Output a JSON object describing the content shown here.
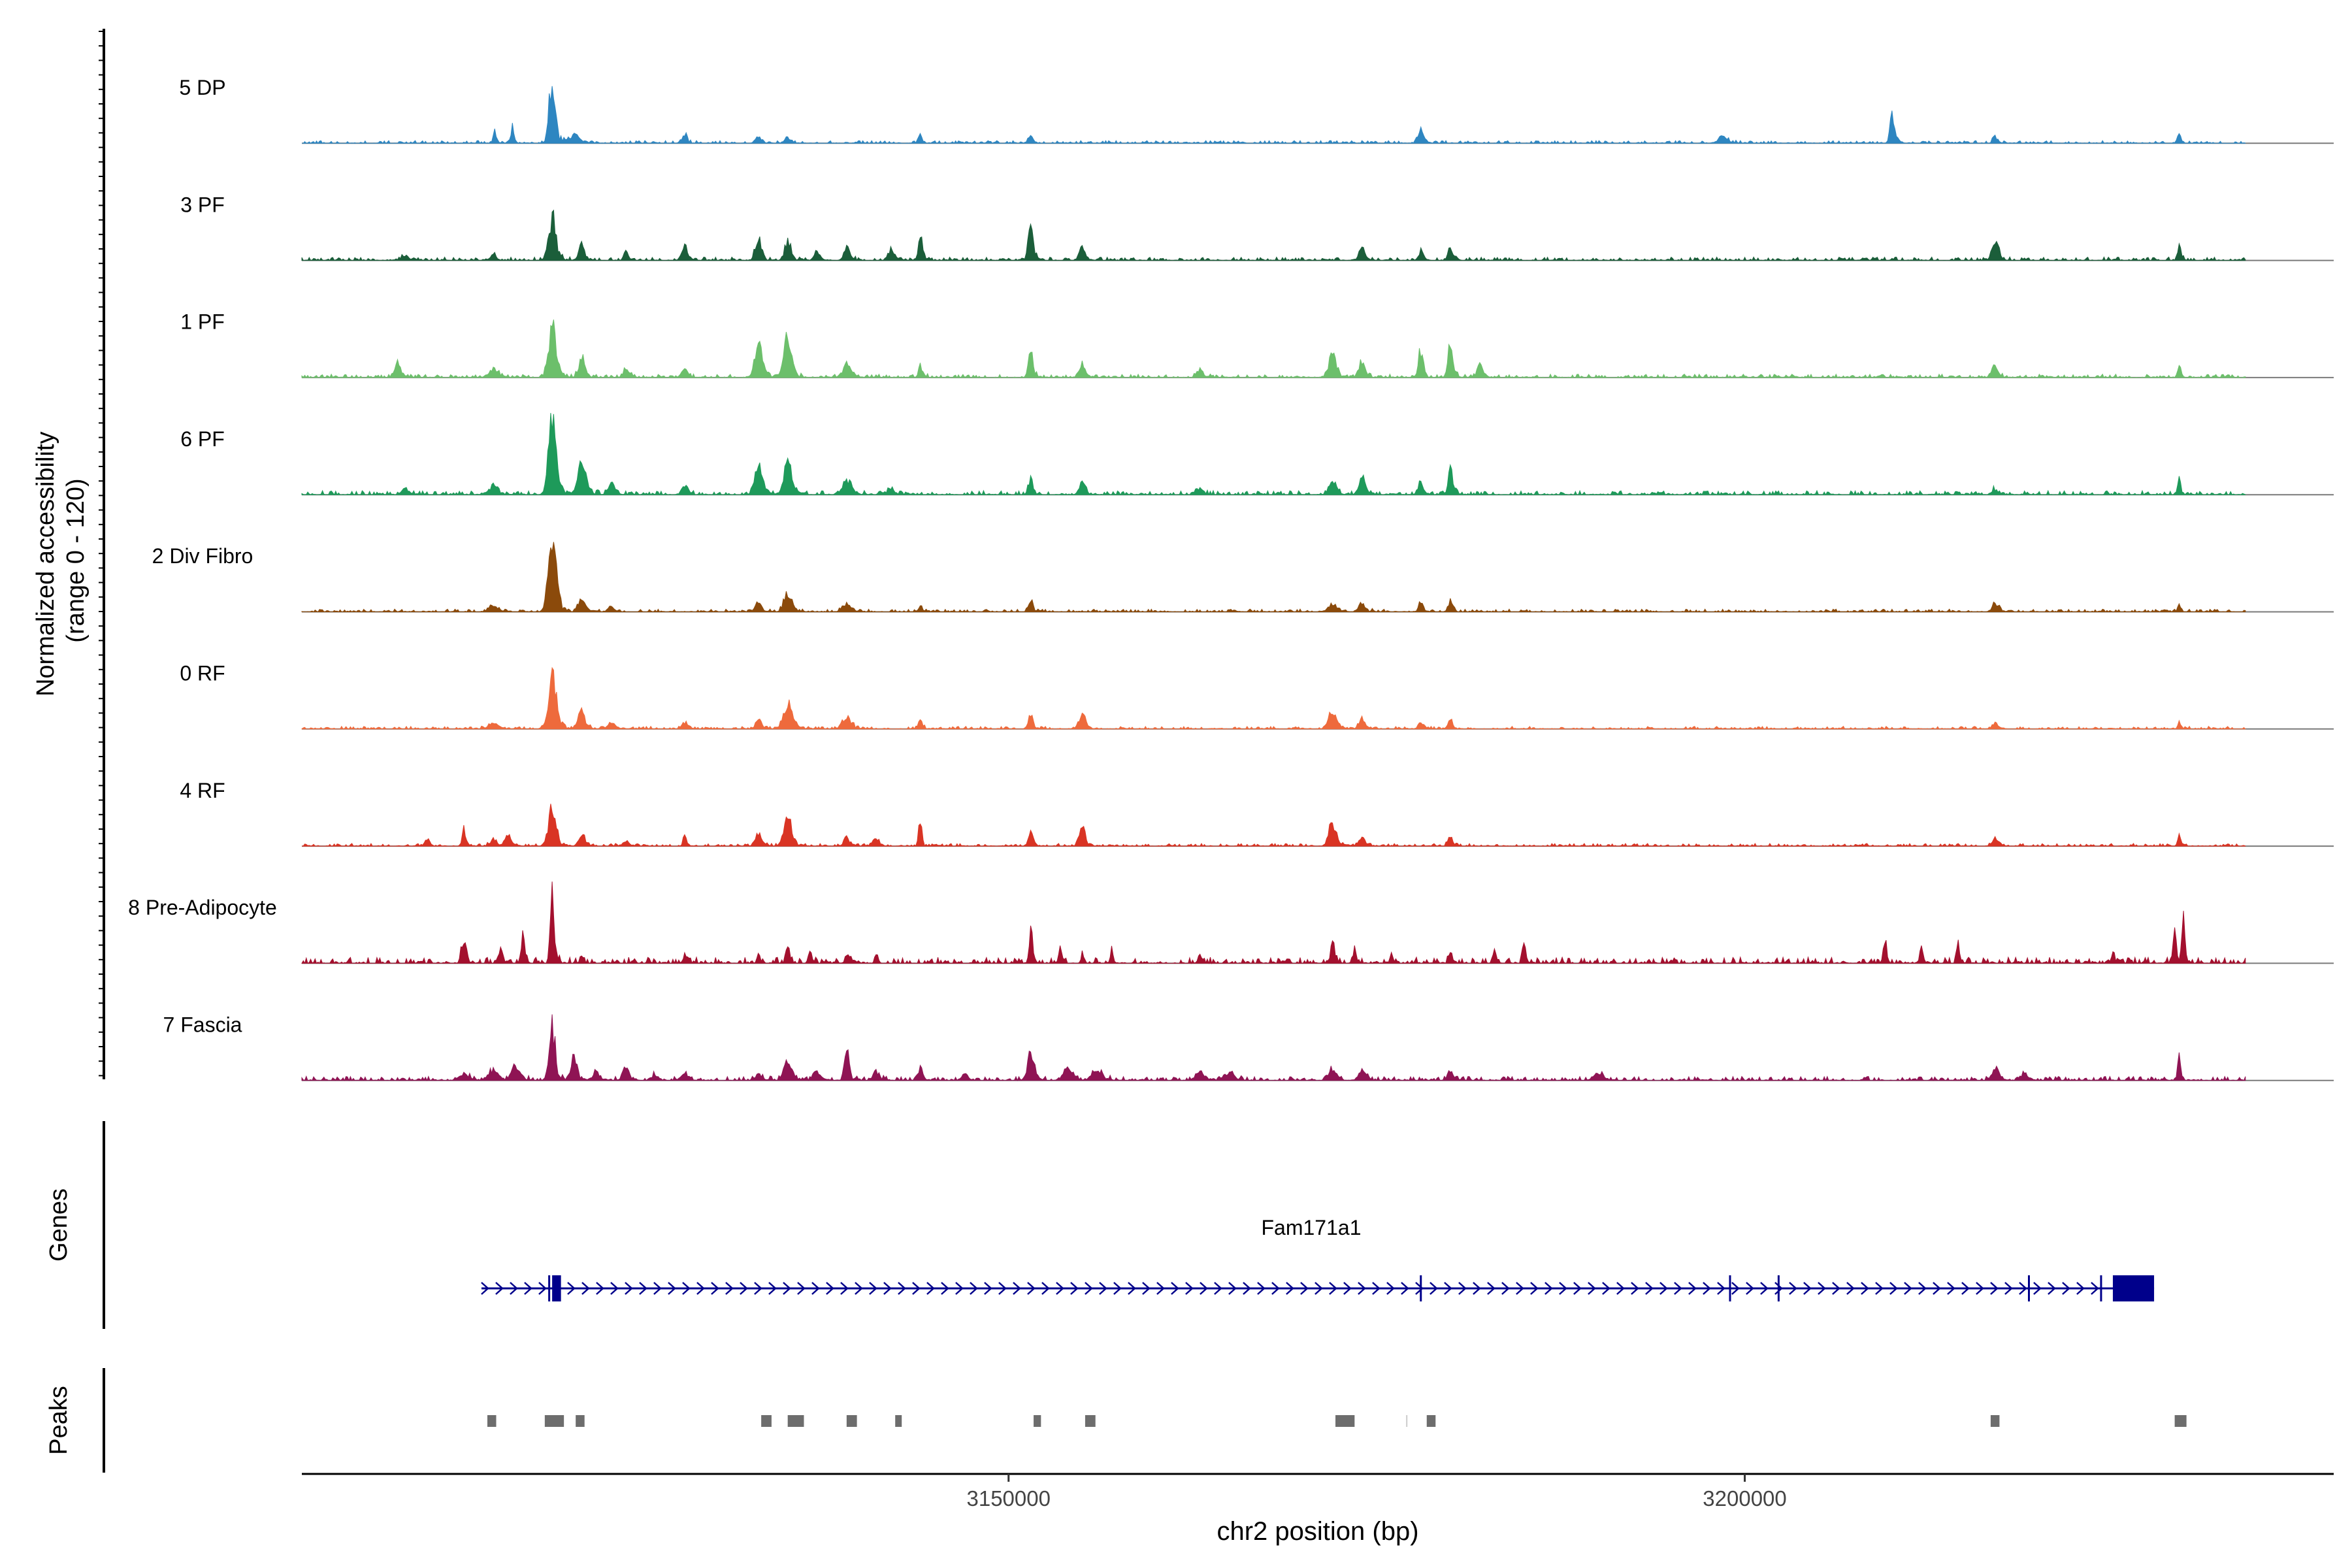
{
  "chart_data": {
    "type": "area",
    "title": "",
    "ylabel_line1": "Normalized accessibility",
    "ylabel_line2": "(range 0 - 120)",
    "xlabel": "chr2 position (bp)",
    "ylim": [
      0,
      120
    ],
    "xlim": [
      3102000,
      3240000
    ],
    "xticks": [
      3150000,
      3200000
    ],
    "xtick_labels": [
      "3150000",
      "3200000"
    ],
    "grid": false,
    "series": [
      {
        "name": "5 DP",
        "color": "#2E86C1",
        "noise": 4,
        "peaks": [
          [
            3115100,
            22,
            100
          ],
          [
            3116300,
            28,
            100
          ],
          [
            3119000,
            120,
            200
          ],
          [
            3120500,
            15,
            300
          ],
          [
            3128000,
            15,
            150
          ],
          [
            3133000,
            10,
            200
          ],
          [
            3135000,
            8,
            200
          ],
          [
            3144000,
            18,
            100
          ],
          [
            3151500,
            15,
            150
          ],
          [
            3178000,
            20,
            200
          ],
          [
            3198500,
            12,
            300
          ],
          [
            3210000,
            48,
            150
          ],
          [
            3217000,
            12,
            150
          ],
          [
            3229500,
            18,
            100
          ]
        ]
      },
      {
        "name": "3 PF",
        "color": "#1B5E3A",
        "noise": 5,
        "peaks": [
          [
            3109000,
            8,
            200
          ],
          [
            3115000,
            10,
            200
          ],
          [
            3119000,
            75,
            250
          ],
          [
            3121000,
            30,
            200
          ],
          [
            3124000,
            15,
            150
          ],
          [
            3128000,
            25,
            200
          ],
          [
            3133000,
            40,
            200
          ],
          [
            3135000,
            35,
            200
          ],
          [
            3137000,
            15,
            200
          ],
          [
            3139000,
            22,
            200
          ],
          [
            3142000,
            20,
            200
          ],
          [
            3144000,
            45,
            120
          ],
          [
            3151500,
            75,
            150
          ],
          [
            3155000,
            25,
            200
          ],
          [
            3174000,
            22,
            200
          ],
          [
            3178000,
            18,
            150
          ],
          [
            3180000,
            22,
            150
          ],
          [
            3217000,
            35,
            200
          ],
          [
            3229500,
            30,
            100
          ]
        ]
      },
      {
        "name": "1 PF",
        "color": "#6CBF6B",
        "noise": 5,
        "peaks": [
          [
            3108500,
            22,
            200
          ],
          [
            3115000,
            15,
            300
          ],
          [
            3119000,
            90,
            250
          ],
          [
            3121000,
            35,
            200
          ],
          [
            3124000,
            12,
            200
          ],
          [
            3128000,
            15,
            200
          ],
          [
            3133000,
            60,
            250
          ],
          [
            3135000,
            70,
            250
          ],
          [
            3139000,
            20,
            300
          ],
          [
            3144000,
            25,
            120
          ],
          [
            3151500,
            55,
            150
          ],
          [
            3155000,
            22,
            200
          ],
          [
            3163000,
            15,
            200
          ],
          [
            3172000,
            40,
            250
          ],
          [
            3174000,
            25,
            200
          ],
          [
            3178000,
            50,
            150
          ],
          [
            3180000,
            60,
            150
          ],
          [
            3182000,
            20,
            200
          ],
          [
            3217000,
            22,
            200
          ],
          [
            3229500,
            20,
            100
          ]
        ]
      },
      {
        "name": "6 PF",
        "color": "#1E9A5A",
        "noise": 6,
        "peaks": [
          [
            3109000,
            12,
            200
          ],
          [
            3115000,
            15,
            300
          ],
          [
            3119000,
            130,
            250
          ],
          [
            3121000,
            65,
            250
          ],
          [
            3123000,
            20,
            200
          ],
          [
            3128000,
            15,
            200
          ],
          [
            3133000,
            50,
            250
          ],
          [
            3135000,
            55,
            250
          ],
          [
            3139000,
            25,
            300
          ],
          [
            3142000,
            12,
            200
          ],
          [
            3151500,
            28,
            150
          ],
          [
            3155000,
            20,
            200
          ],
          [
            3163000,
            12,
            200
          ],
          [
            3172000,
            25,
            250
          ],
          [
            3174000,
            30,
            200
          ],
          [
            3178000,
            25,
            150
          ],
          [
            3180000,
            50,
            150
          ],
          [
            3217000,
            10,
            200
          ],
          [
            3229500,
            30,
            100
          ]
        ]
      },
      {
        "name": "2 Div Fibro",
        "color": "#8B4A0B",
        "noise": 4,
        "peaks": [
          [
            3115000,
            10,
            300
          ],
          [
            3119000,
            150,
            250
          ],
          [
            3121000,
            25,
            200
          ],
          [
            3123000,
            10,
            200
          ],
          [
            3133000,
            18,
            200
          ],
          [
            3135000,
            35,
            250
          ],
          [
            3139000,
            12,
            300
          ],
          [
            3144000,
            12,
            120
          ],
          [
            3151500,
            22,
            150
          ],
          [
            3172000,
            15,
            250
          ],
          [
            3174000,
            18,
            200
          ],
          [
            3178000,
            15,
            150
          ],
          [
            3180000,
            18,
            150
          ],
          [
            3217000,
            15,
            200
          ],
          [
            3229500,
            12,
            100
          ]
        ]
      },
      {
        "name": "0 RF",
        "color": "#EE6A3C",
        "noise": 4,
        "peaks": [
          [
            3115000,
            12,
            300
          ],
          [
            3119000,
            100,
            250
          ],
          [
            3121000,
            35,
            200
          ],
          [
            3123000,
            12,
            200
          ],
          [
            3128000,
            10,
            200
          ],
          [
            3133000,
            15,
            200
          ],
          [
            3135000,
            45,
            300
          ],
          [
            3139000,
            20,
            300
          ],
          [
            3144000,
            20,
            120
          ],
          [
            3151500,
            25,
            150
          ],
          [
            3155000,
            30,
            200
          ],
          [
            3172000,
            30,
            250
          ],
          [
            3174000,
            20,
            200
          ],
          [
            3178000,
            15,
            150
          ],
          [
            3180000,
            15,
            150
          ],
          [
            3217000,
            10,
            200
          ],
          [
            3229500,
            10,
            100
          ]
        ]
      },
      {
        "name": "4 RF",
        "color": "#D93424",
        "noise": 4,
        "peaks": [
          [
            3110500,
            12,
            150
          ],
          [
            3113000,
            35,
            100
          ],
          [
            3115000,
            12,
            200
          ],
          [
            3116000,
            18,
            200
          ],
          [
            3119000,
            68,
            250
          ],
          [
            3121000,
            22,
            200
          ],
          [
            3124000,
            10,
            200
          ],
          [
            3128000,
            20,
            100
          ],
          [
            3133000,
            25,
            200
          ],
          [
            3135000,
            60,
            250
          ],
          [
            3139000,
            15,
            200
          ],
          [
            3141000,
            15,
            200
          ],
          [
            3144000,
            55,
            100
          ],
          [
            3151500,
            22,
            150
          ],
          [
            3155000,
            35,
            200
          ],
          [
            3172000,
            40,
            250
          ],
          [
            3174000,
            15,
            200
          ],
          [
            3180000,
            20,
            150
          ],
          [
            3217000,
            15,
            200
          ],
          [
            3229500,
            20,
            100
          ]
        ]
      },
      {
        "name": "8 Pre-Adipocyte",
        "color": "#A3102E",
        "noise": 9,
        "peaks": [
          [
            3113000,
            40,
            150
          ],
          [
            3115500,
            28,
            100
          ],
          [
            3117000,
            50,
            100
          ],
          [
            3119000,
            130,
            120
          ],
          [
            3121000,
            18,
            100
          ],
          [
            3128000,
            15,
            100
          ],
          [
            3133000,
            15,
            100
          ],
          [
            3135000,
            35,
            100
          ],
          [
            3136500,
            22,
            100
          ],
          [
            3139000,
            20,
            100
          ],
          [
            3141000,
            15,
            100
          ],
          [
            3151500,
            70,
            100
          ],
          [
            3153500,
            28,
            100
          ],
          [
            3155000,
            15,
            100
          ],
          [
            3157000,
            18,
            100
          ],
          [
            3163000,
            15,
            100
          ],
          [
            3172000,
            30,
            150
          ],
          [
            3173500,
            30,
            100
          ],
          [
            3176000,
            15,
            100
          ],
          [
            3180000,
            25,
            100
          ],
          [
            3183000,
            22,
            100
          ],
          [
            3185000,
            45,
            100
          ],
          [
            3209500,
            40,
            100
          ],
          [
            3212000,
            32,
            100
          ],
          [
            3214500,
            40,
            100
          ],
          [
            3225000,
            22,
            100
          ],
          [
            3229200,
            55,
            100
          ],
          [
            3229800,
            80,
            100
          ]
        ]
      },
      {
        "name": "7 Fascia",
        "color": "#8F1454",
        "noise": 6,
        "peaks": [
          [
            3113000,
            12,
            300
          ],
          [
            3115000,
            18,
            300
          ],
          [
            3116500,
            30,
            250
          ],
          [
            3119000,
            95,
            200
          ],
          [
            3120500,
            40,
            200
          ],
          [
            3122000,
            15,
            200
          ],
          [
            3124000,
            22,
            200
          ],
          [
            3126000,
            10,
            200
          ],
          [
            3128000,
            10,
            200
          ],
          [
            3133000,
            12,
            200
          ],
          [
            3135000,
            35,
            250
          ],
          [
            3137000,
            15,
            200
          ],
          [
            3139000,
            55,
            150
          ],
          [
            3141000,
            15,
            200
          ],
          [
            3144000,
            22,
            150
          ],
          [
            3147000,
            10,
            200
          ],
          [
            3151500,
            50,
            200
          ],
          [
            3154000,
            20,
            300
          ],
          [
            3156000,
            20,
            300
          ],
          [
            3163000,
            15,
            300
          ],
          [
            3165000,
            12,
            300
          ],
          [
            3172000,
            18,
            250
          ],
          [
            3174000,
            22,
            200
          ],
          [
            3180000,
            15,
            200
          ],
          [
            3190000,
            12,
            300
          ],
          [
            3217000,
            25,
            200
          ],
          [
            3219000,
            12,
            200
          ],
          [
            3229500,
            40,
            100
          ]
        ]
      }
    ],
    "gene": {
      "name": "Fam171a1",
      "start": 3114200,
      "end": 3227800,
      "strand": "+",
      "color": "#00008B",
      "exons_thin": [
        3118800,
        3178000,
        3199000,
        3202300,
        3219300,
        3224200
      ],
      "exons_thick": [
        [
          3119000,
          3119600
        ],
        [
          3225000,
          3227800
        ]
      ]
    },
    "peaks_label": "Peaks",
    "genes_label": "Genes",
    "peak_color": "#6D6D6D",
    "peak_regions": [
      [
        3114600,
        3115200
      ],
      [
        3118500,
        3119800
      ],
      [
        3120600,
        3121200
      ],
      [
        3133200,
        3133900
      ],
      [
        3135000,
        3136100
      ],
      [
        3139000,
        3139700
      ],
      [
        3142300,
        3142700
      ],
      [
        3151700,
        3152200
      ],
      [
        3155200,
        3155900
      ],
      [
        3172200,
        3173500
      ],
      [
        3178400,
        3179000
      ],
      [
        3216700,
        3217300
      ],
      [
        3229200,
        3230000
      ]
    ],
    "thin_marks": [
      3177000
    ]
  }
}
